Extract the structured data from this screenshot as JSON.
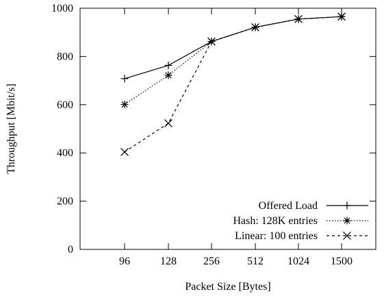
{
  "chart_data": {
    "type": "line",
    "xlabel": "Packet Size [Bytes]",
    "ylabel": "Throughput [Mbit/s]",
    "categories": [
      "96",
      "128",
      "256",
      "512",
      "1024",
      "1500"
    ],
    "ylim": [
      0,
      1000
    ],
    "yticks": [
      "0",
      "200",
      "400",
      "600",
      "800",
      "1000"
    ],
    "grid": false,
    "legend_position": "bottom-right",
    "series": [
      {
        "name": "Offered Load",
        "values": [
          708,
          763,
          862,
          921,
          955,
          965
        ],
        "line_style": "solid",
        "marker": "plus"
      },
      {
        "name": "Hash: 128K entries",
        "values": [
          601,
          722,
          862,
          921,
          955,
          965
        ],
        "line_style": "dotted",
        "marker": "asterisk"
      },
      {
        "name": "Linear: 100 entries",
        "values": [
          404,
          523,
          862,
          921,
          955,
          965
        ],
        "line_style": "dashed",
        "marker": "cross"
      }
    ]
  }
}
